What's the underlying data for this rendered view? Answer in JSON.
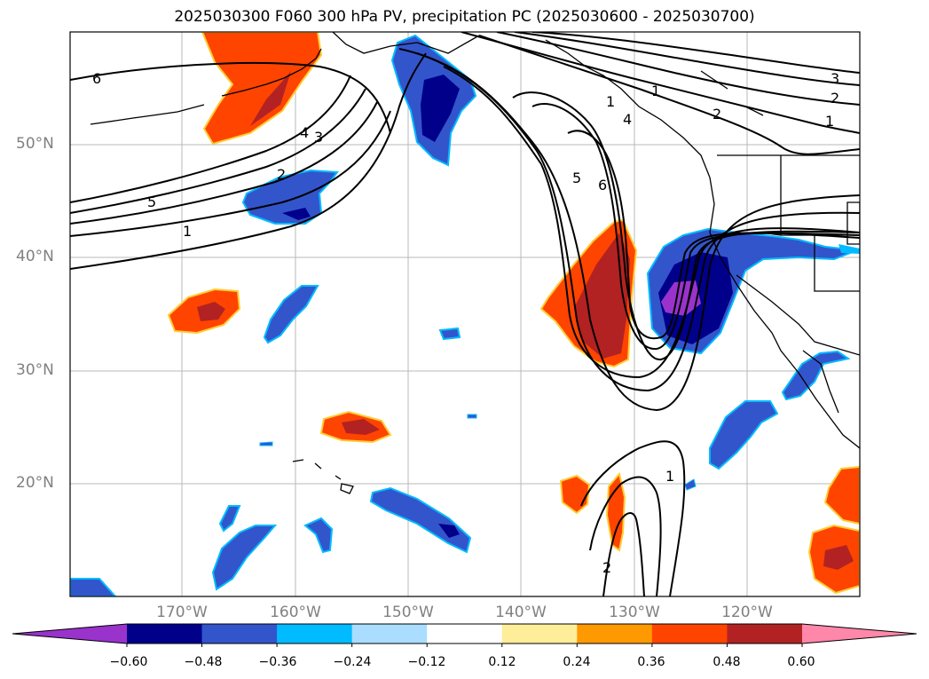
{
  "title": "2025030300 F060 300 hPa PV, precipitation PC (2025030600 - 2025030700)",
  "lat_labels": [
    "50°N",
    "40°N",
    "30°N",
    "20°N"
  ],
  "lon_labels": [
    "170°W",
    "160°W",
    "150°W",
    "140°W",
    "130°W",
    "120°W"
  ],
  "contour_labels": [
    "6",
    "5",
    "1",
    "2",
    "4",
    "3",
    "1",
    "4",
    "2",
    "1",
    "3",
    "2",
    "1",
    "5",
    "6",
    "1",
    "2"
  ],
  "colorbar": {
    "ticks": [
      "−0.60",
      "−0.48",
      "−0.36",
      "−0.24",
      "−0.12",
      "0.12",
      "0.24",
      "0.36",
      "0.48",
      "0.60"
    ],
    "colors": [
      "#9933cc",
      "#00008b",
      "#3355cc",
      "#00bbff",
      "#aaddff",
      "#ffffff",
      "#ffee99",
      "#ff9900",
      "#ff4400",
      "#b22222",
      "#ff88aa"
    ]
  },
  "chart_data": {
    "type": "heatmap",
    "fields": [
      "300 hPa PV (contours, labeled 1–6)",
      "precipitation PC (shaded)"
    ],
    "region": {
      "lat_range": [
        10,
        60
      ],
      "lon_range": [
        -180,
        -110
      ]
    },
    "colorbar_bounds": [
      -0.6,
      -0.48,
      -0.36,
      -0.24,
      -0.12,
      0.12,
      0.24,
      0.36,
      0.48,
      0.6
    ],
    "colorbar_extend": "both",
    "grid": true
  }
}
